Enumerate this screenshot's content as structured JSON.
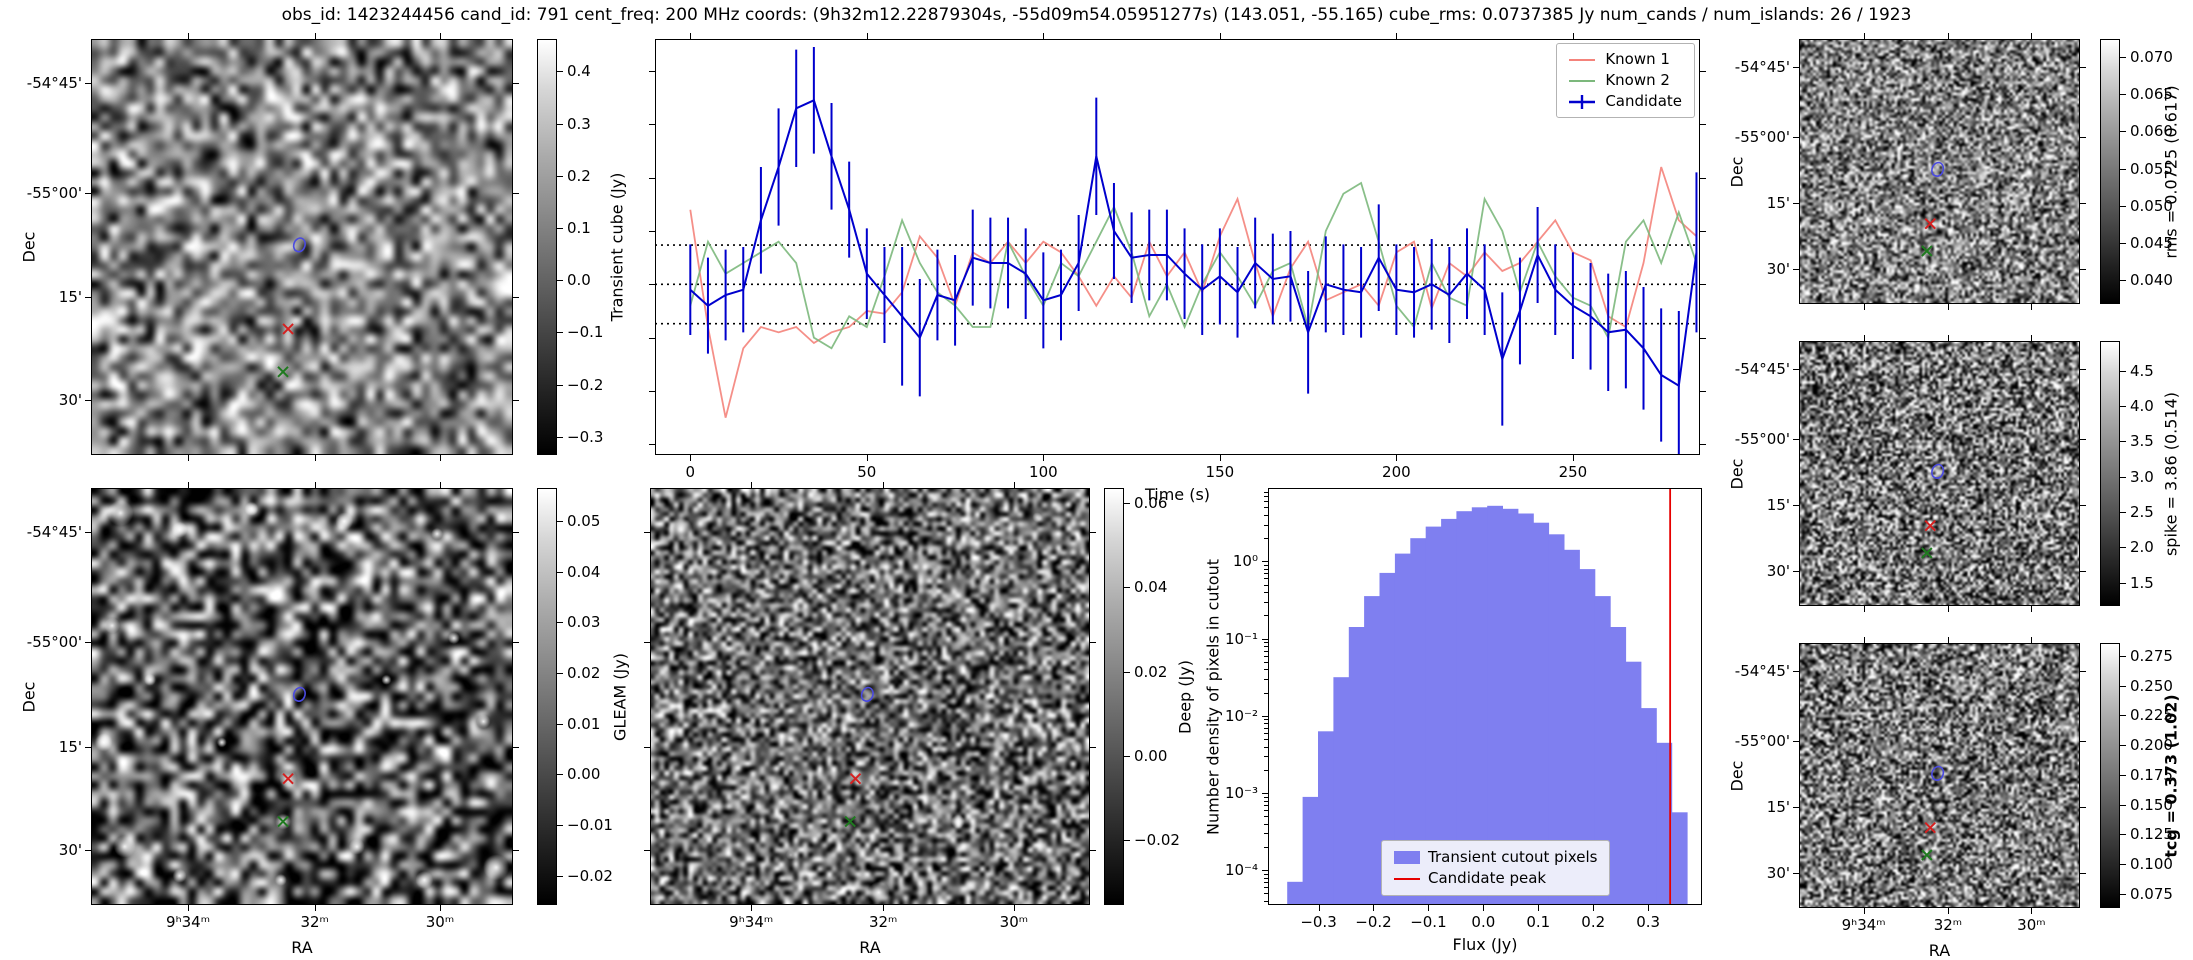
{
  "title": "obs_id: 1423244456 cand_id: 791 cent_freq: 200 MHz coords: (9h32m12.22879304s, -55d09m54.05951277s) (143.051, -55.165) cube_rms: 0.0737385 Jy num_cands / num_islands: 26 / 1923",
  "axes": {
    "dec_label": "Dec",
    "ra_label": "RA"
  },
  "sky_ticks": {
    "dec": {
      "labels": [
        "-54°45'",
        "-55°00'",
        "15'",
        "30'"
      ],
      "fracs": [
        0.106,
        0.37,
        0.62,
        0.868
      ]
    },
    "ra": {
      "labels": [
        "9ʰ34ᵐ",
        "32ᵐ",
        "30ᵐ"
      ],
      "fracs": [
        0.23,
        0.53,
        0.827
      ]
    }
  },
  "markers": {
    "candidate_contour": {
      "color": "#4a4ae0",
      "fx": 0.495,
      "fy": 0.5
    },
    "known1_cross": {
      "color": "#d62020",
      "fx": 0.467,
      "fy": 0.697
    },
    "known2_cross": {
      "color": "#1f7a1f",
      "fx": 0.455,
      "fy": 0.8
    }
  },
  "cutouts": [
    {
      "id": "transient",
      "colorbar": {
        "label": "Transient cube (Jy)",
        "bold": false,
        "vmin": -0.335,
        "vmax": 0.462,
        "tick_values": [
          0.4,
          0.3,
          0.2,
          0.1,
          0.0,
          -0.1,
          -0.2,
          -0.3
        ],
        "tick_labels": [
          "0.4",
          "0.3",
          "0.2",
          "0.1",
          "0.0",
          "−0.1",
          "−0.2",
          "−0.3"
        ]
      }
    },
    {
      "id": "gleam",
      "colorbar": {
        "label": "GLEAM (Jy)",
        "bold": false,
        "vmin": -0.0258,
        "vmax": 0.0565,
        "tick_values": [
          0.05,
          0.04,
          0.03,
          0.02,
          0.01,
          0.0,
          -0.01,
          -0.02
        ],
        "tick_labels": [
          "0.05",
          "0.04",
          "0.03",
          "0.02",
          "0.01",
          "0.00",
          "−0.01",
          "−0.02"
        ]
      }
    },
    {
      "id": "deep",
      "colorbar": {
        "label": "Deep (Jy)",
        "bold": false,
        "vmin": -0.0354,
        "vmax": 0.0636,
        "tick_values": [
          0.06,
          0.04,
          0.02,
          0.0,
          -0.02
        ],
        "tick_labels": [
          "0.06",
          "0.04",
          "0.02",
          "0.00",
          "−0.02"
        ]
      }
    },
    {
      "id": "rms",
      "colorbar": {
        "label": "rms = 0.0725 (0.617)",
        "bold": false,
        "vmin": 0.0368,
        "vmax": 0.0724,
        "tick_values": [
          0.07,
          0.065,
          0.06,
          0.055,
          0.05,
          0.045,
          0.04
        ],
        "tick_labels": [
          "0.070",
          "0.065",
          "0.060",
          "0.055",
          "0.050",
          "0.045",
          "0.040"
        ]
      }
    },
    {
      "id": "spike",
      "colorbar": {
        "label": "spike = 3.86 (0.514)",
        "bold": false,
        "vmin": 1.17,
        "vmax": 4.92,
        "tick_values": [
          4.5,
          4.0,
          3.5,
          3.0,
          2.5,
          2.0,
          1.5
        ],
        "tick_labels": [
          "4.5",
          "4.0",
          "3.5",
          "3.0",
          "2.5",
          "2.0",
          "1.5"
        ]
      }
    },
    {
      "id": "tcg",
      "colorbar": {
        "label": "tcg = 0.373 (1.02)",
        "bold": true,
        "vmin": 0.063,
        "vmax": 0.286,
        "tick_values": [
          0.275,
          0.25,
          0.225,
          0.2,
          0.175,
          0.15,
          0.125,
          0.1,
          0.075
        ],
        "tick_labels": [
          "0.275",
          "0.250",
          "0.225",
          "0.200",
          "0.175",
          "0.150",
          "0.125",
          "0.100",
          "0.075"
        ]
      }
    }
  ],
  "chart_data": [
    {
      "type": "line",
      "title": "",
      "xlabel": "Time (s)",
      "ylabel": "",
      "xlim": [
        -10,
        286
      ],
      "ylim": [
        -0.32,
        0.46
      ],
      "xticks": [
        0,
        50,
        100,
        150,
        200,
        250
      ],
      "xtick_labels": [
        "0",
        "50",
        "100",
        "150",
        "200",
        "250"
      ],
      "yticks": [
        -0.3,
        -0.2,
        -0.1,
        0.0,
        0.1,
        0.2,
        0.3,
        0.4
      ],
      "hlines": {
        "values": [
          0.0737,
          0.0,
          -0.0737
        ],
        "style": "dotted",
        "color": "#000000"
      },
      "legend_position": "upper right",
      "x": [
        0,
        5,
        10,
        15,
        20,
        25,
        30,
        35,
        40,
        45,
        50,
        55,
        60,
        65,
        70,
        75,
        80,
        85,
        90,
        95,
        100,
        105,
        110,
        115,
        120,
        125,
        130,
        135,
        140,
        145,
        150,
        155,
        160,
        165,
        170,
        175,
        180,
        185,
        190,
        195,
        200,
        205,
        210,
        215,
        220,
        225,
        230,
        235,
        240,
        245,
        250,
        255,
        260,
        265,
        270,
        275,
        280,
        285
      ],
      "series": [
        {
          "name": "Known 1",
          "color": "#f4837b",
          "values": [
            0.14,
            -0.08,
            -0.25,
            -0.12,
            -0.08,
            -0.09,
            -0.08,
            -0.11,
            -0.09,
            -0.08,
            -0.05,
            -0.055,
            -0.015,
            0.09,
            0.05,
            -0.04,
            0.06,
            0.04,
            0.08,
            0.04,
            0.08,
            0.06,
            0.015,
            -0.04,
            0.015,
            -0.025,
            0.08,
            0.015,
            0.06,
            -0.015,
            0.09,
            0.16,
            0.04,
            -0.06,
            0.03,
            0.08,
            -0.03,
            -0.015,
            0.0,
            -0.04,
            0.06,
            0.08,
            -0.045,
            0.04,
            0.015,
            0.06,
            0.025,
            0.04,
            0.08,
            0.12,
            0.06,
            0.045,
            -0.06,
            -0.08,
            0.04,
            0.22,
            0.12,
            0.09
          ]
        },
        {
          "name": "Known 2",
          "color": "#7cb87c",
          "values": [
            -0.04,
            0.08,
            0.02,
            0.04,
            0.06,
            0.08,
            0.04,
            -0.1,
            -0.12,
            -0.06,
            -0.08,
            0.015,
            0.12,
            0.04,
            -0.015,
            -0.04,
            -0.08,
            -0.08,
            0.08,
            0.015,
            -0.04,
            0.04,
            0.015,
            0.08,
            0.145,
            0.06,
            -0.06,
            0.0,
            -0.08,
            0.0,
            0.06,
            0.015,
            -0.04,
            0.025,
            0.04,
            -0.08,
            0.1,
            0.17,
            0.19,
            0.08,
            -0.04,
            -0.08,
            0.04,
            -0.025,
            -0.04,
            0.16,
            0.1,
            -0.015,
            0.08,
            0.015,
            -0.025,
            -0.04,
            -0.1,
            0.08,
            0.12,
            0.04,
            0.135,
            0.04
          ]
        },
        {
          "name": "Candidate",
          "color": "#0000cd",
          "values": [
            -0.01,
            -0.04,
            -0.02,
            -0.01,
            0.12,
            0.22,
            0.33,
            0.345,
            0.24,
            0.14,
            0.02,
            -0.02,
            -0.06,
            -0.1,
            -0.02,
            -0.03,
            0.05,
            0.04,
            0.04,
            0.02,
            -0.03,
            -0.02,
            0.04,
            0.24,
            0.1,
            0.05,
            0.055,
            0.055,
            0.02,
            -0.01,
            0.015,
            -0.015,
            0.04,
            0.01,
            0.015,
            -0.09,
            0.0,
            -0.01,
            -0.015,
            0.05,
            -0.01,
            -0.015,
            0.0,
            -0.02,
            0.02,
            -0.01,
            -0.14,
            -0.05,
            0.055,
            -0.01,
            -0.04,
            -0.06,
            -0.09,
            -0.085,
            -0.12,
            -0.17,
            -0.19,
            0.06
          ],
          "yerr": [
            0.085,
            0.09,
            0.085,
            0.08,
            0.1,
            0.11,
            0.11,
            0.1,
            0.1,
            0.09,
            0.085,
            0.09,
            0.13,
            0.11,
            0.085,
            0.085,
            0.09,
            0.085,
            0.085,
            0.085,
            0.09,
            0.085,
            0.09,
            0.11,
            0.09,
            0.085,
            0.085,
            0.085,
            0.085,
            0.085,
            0.09,
            0.085,
            0.085,
            0.085,
            0.085,
            0.115,
            0.09,
            0.085,
            0.085,
            0.1,
            0.085,
            0.085,
            0.085,
            0.09,
            0.085,
            0.085,
            0.125,
            0.1,
            0.09,
            0.085,
            0.1,
            0.1,
            0.11,
            0.11,
            0.115,
            0.125,
            0.14,
            0.15
          ]
        }
      ]
    },
    {
      "type": "bar",
      "title": "",
      "xlabel": "Flux (Jy)",
      "ylabel": "Number density of pixels in cutout",
      "yscale": "log",
      "xlim": [
        -0.392,
        0.398
      ],
      "ylim_log10": [
        -4.45,
        0.95
      ],
      "xticks": [
        -0.3,
        -0.2,
        -0.1,
        0.0,
        0.1,
        0.2,
        0.3
      ],
      "xtick_labels": [
        "−0.3",
        "−0.2",
        "−0.1",
        "0.0",
        "0.1",
        "0.2",
        "0.3"
      ],
      "ytick_log10": [
        0,
        -1,
        -2,
        -3,
        -4
      ],
      "ytick_labels": [
        "10⁰",
        "10⁻¹",
        "10⁻²",
        "10⁻³",
        "10⁻⁴"
      ],
      "bar_color": "#7f7ff0",
      "bin_start": -0.357,
      "bin_width": 0.028,
      "log10_density": [
        -4.15,
        -3.05,
        -2.2,
        -1.5,
        -0.85,
        -0.45,
        -0.15,
        0.1,
        0.3,
        0.45,
        0.55,
        0.65,
        0.7,
        0.72,
        0.68,
        0.62,
        0.5,
        0.35,
        0.15,
        -0.1,
        -0.45,
        -0.85,
        -1.3,
        -1.9,
        -2.35,
        -3.25
      ],
      "candidate_peak_flux": 0.34,
      "vline_color": "#e60000",
      "legend": [
        {
          "label": "Transient cutout pixels",
          "swatch": "patch",
          "color": "#7f7ff0"
        },
        {
          "label": "Candidate peak",
          "swatch": "line",
          "color": "#e60000"
        }
      ]
    }
  ]
}
